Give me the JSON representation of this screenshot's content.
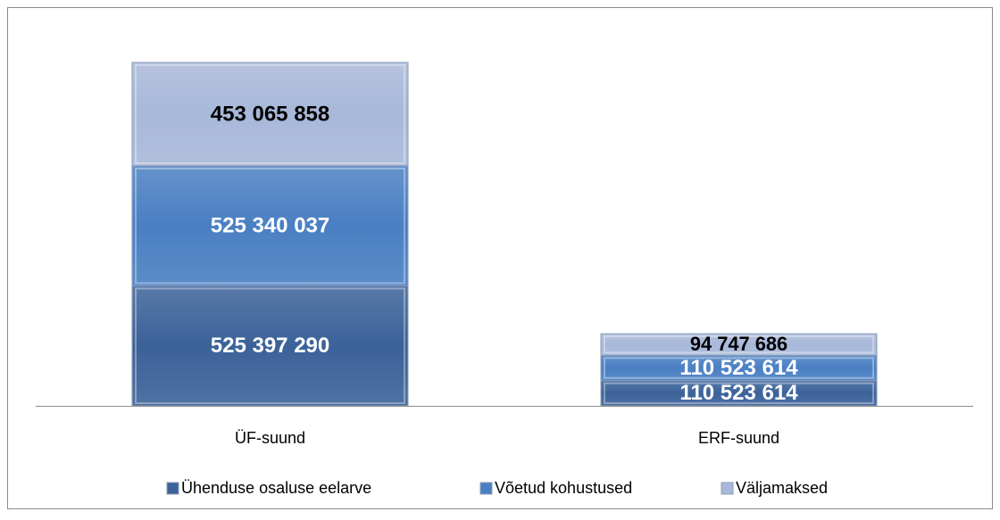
{
  "chart_data": {
    "type": "stacked_bar",
    "categories": [
      "ÜF-suund",
      "ERF-suund"
    ],
    "series": [
      {
        "name": "Ühenduse osaluse eelarve",
        "color": "#3b6299",
        "label_color": "#ffffff",
        "values": [
          525397290,
          110523614
        ],
        "value_labels": [
          "525 397 290",
          "110 523 614"
        ]
      },
      {
        "name": "Võetud kohustused",
        "color": "#4a7fc3",
        "label_color": "#ffffff",
        "values": [
          525340037,
          110523614
        ],
        "value_labels": [
          "525 340 037",
          "110 523 614"
        ]
      },
      {
        "name": "Väljamaksed",
        "color": "#a8b8d9",
        "label_color": "#000000",
        "values": [
          453065858,
          94747686
        ],
        "value_labels": [
          "453 065 858",
          "94 747 686"
        ]
      }
    ],
    "legend": "bottom"
  }
}
